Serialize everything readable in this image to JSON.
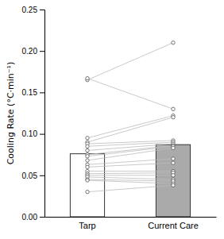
{
  "chart_data": {
    "type": "bar",
    "categories": [
      "Tarp",
      "Current Care"
    ],
    "values": [
      0.076,
      0.087
    ],
    "colors": [
      "#ffffff",
      "#aaaaaa"
    ],
    "point_values": [
      [
        0.165,
        0.167,
        0.095,
        0.09,
        0.088,
        0.085,
        0.08,
        0.075,
        0.073,
        0.068,
        0.063,
        0.06,
        0.055,
        0.052,
        0.05,
        0.048,
        0.045,
        0.044,
        0.03
      ],
      [
        0.21,
        0.13,
        0.122,
        0.12,
        0.092,
        0.09,
        0.088,
        0.086,
        0.085,
        0.083,
        0.07,
        0.065,
        0.055,
        0.053,
        0.05,
        0.045,
        0.043,
        0.04,
        0.038
      ]
    ],
    "ylabel": "Cooling Rate (°C·min⁻¹)",
    "ylim": [
      0.0,
      0.25
    ],
    "yticks": [
      {
        "value": 0.0,
        "label": "0.00"
      },
      0.05,
      {
        "value": 0.1,
        "label": "0.10"
      },
      0.15,
      {
        "value": 0.2,
        "label": "0.20"
      },
      0.25
    ],
    "grid": false
  }
}
